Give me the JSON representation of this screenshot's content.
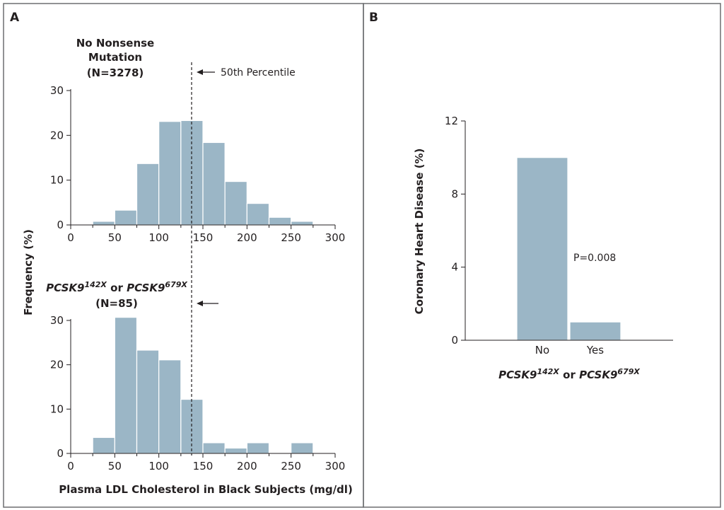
{
  "panels": {
    "a_label": "A",
    "b_label": "B"
  },
  "chart_data": [
    {
      "type": "bar",
      "panel": "A",
      "title_lines": [
        "No Nonsense",
        "Mutation",
        "(N=3278)"
      ],
      "ylabel": "Frequency (%)",
      "xlabel": "",
      "xlim": [
        0,
        300
      ],
      "ylim": [
        0,
        30
      ],
      "x_ticks": [
        "0",
        "50",
        "100",
        "150",
        "200",
        "250",
        "300"
      ],
      "y_ticks": [
        "0",
        "10",
        "20",
        "30"
      ],
      "bin_width": 25,
      "bin_centers": [
        37.5,
        62.5,
        87.5,
        112.5,
        137.5,
        162.5,
        187.5,
        212.5,
        237.5,
        262.5
      ],
      "values": [
        0.8,
        3.3,
        13.7,
        23.1,
        23.3,
        18.4,
        9.7,
        4.8,
        1.7,
        0.8
      ],
      "median_line_x": 137,
      "annotation": "50th Percentile",
      "grid": false
    },
    {
      "type": "bar",
      "panel": "A",
      "title_parts": [
        {
          "text": "PCSK9",
          "italic": true
        },
        {
          "text": "142X",
          "italic": true,
          "sup": true
        },
        {
          "text": " or ",
          "italic": false
        },
        {
          "text": "PCSK9",
          "italic": true
        },
        {
          "text": "679X",
          "italic": true,
          "sup": true
        }
      ],
      "title_n": "(N=85)",
      "ylabel": "Frequency (%)",
      "xlabel": "Plasma LDL Cholesterol in Black Subjects (mg/dl)",
      "xlim": [
        0,
        300
      ],
      "ylim": [
        0,
        30
      ],
      "x_ticks": [
        "0",
        "50",
        "100",
        "150",
        "200",
        "250",
        "300"
      ],
      "y_ticks": [
        "0",
        "10",
        "20",
        "30"
      ],
      "bin_width": 25,
      "bin_centers": [
        37.5,
        62.5,
        87.5,
        112.5,
        137.5,
        162.5,
        187.5,
        212.5,
        237.5,
        262.5
      ],
      "values": [
        3.6,
        30.7,
        23.3,
        21.1,
        12.2,
        2.4,
        1.2,
        2.4,
        0,
        2.4
      ],
      "median_line_x": 137,
      "grid": false
    },
    {
      "type": "bar",
      "panel": "B",
      "categories": [
        "No",
        "Yes"
      ],
      "values": [
        10.0,
        1.0
      ],
      "ylabel": "Coronary Heart Disease (%)",
      "xlabel_parts": [
        {
          "text": "PCSK9",
          "italic": true
        },
        {
          "text": "142X",
          "italic": true,
          "sup": true
        },
        {
          "text": " or ",
          "italic": false
        },
        {
          "text": "PCSK9",
          "italic": true
        },
        {
          "text": "679X",
          "italic": true,
          "sup": true
        }
      ],
      "ylim": [
        0,
        12
      ],
      "y_ticks": [
        "0",
        "4",
        "8",
        "12"
      ],
      "annotation": "P=0.008",
      "grid": false
    }
  ],
  "colors": {
    "bar": "#9bb6c6",
    "frame": "#6d6e71"
  }
}
